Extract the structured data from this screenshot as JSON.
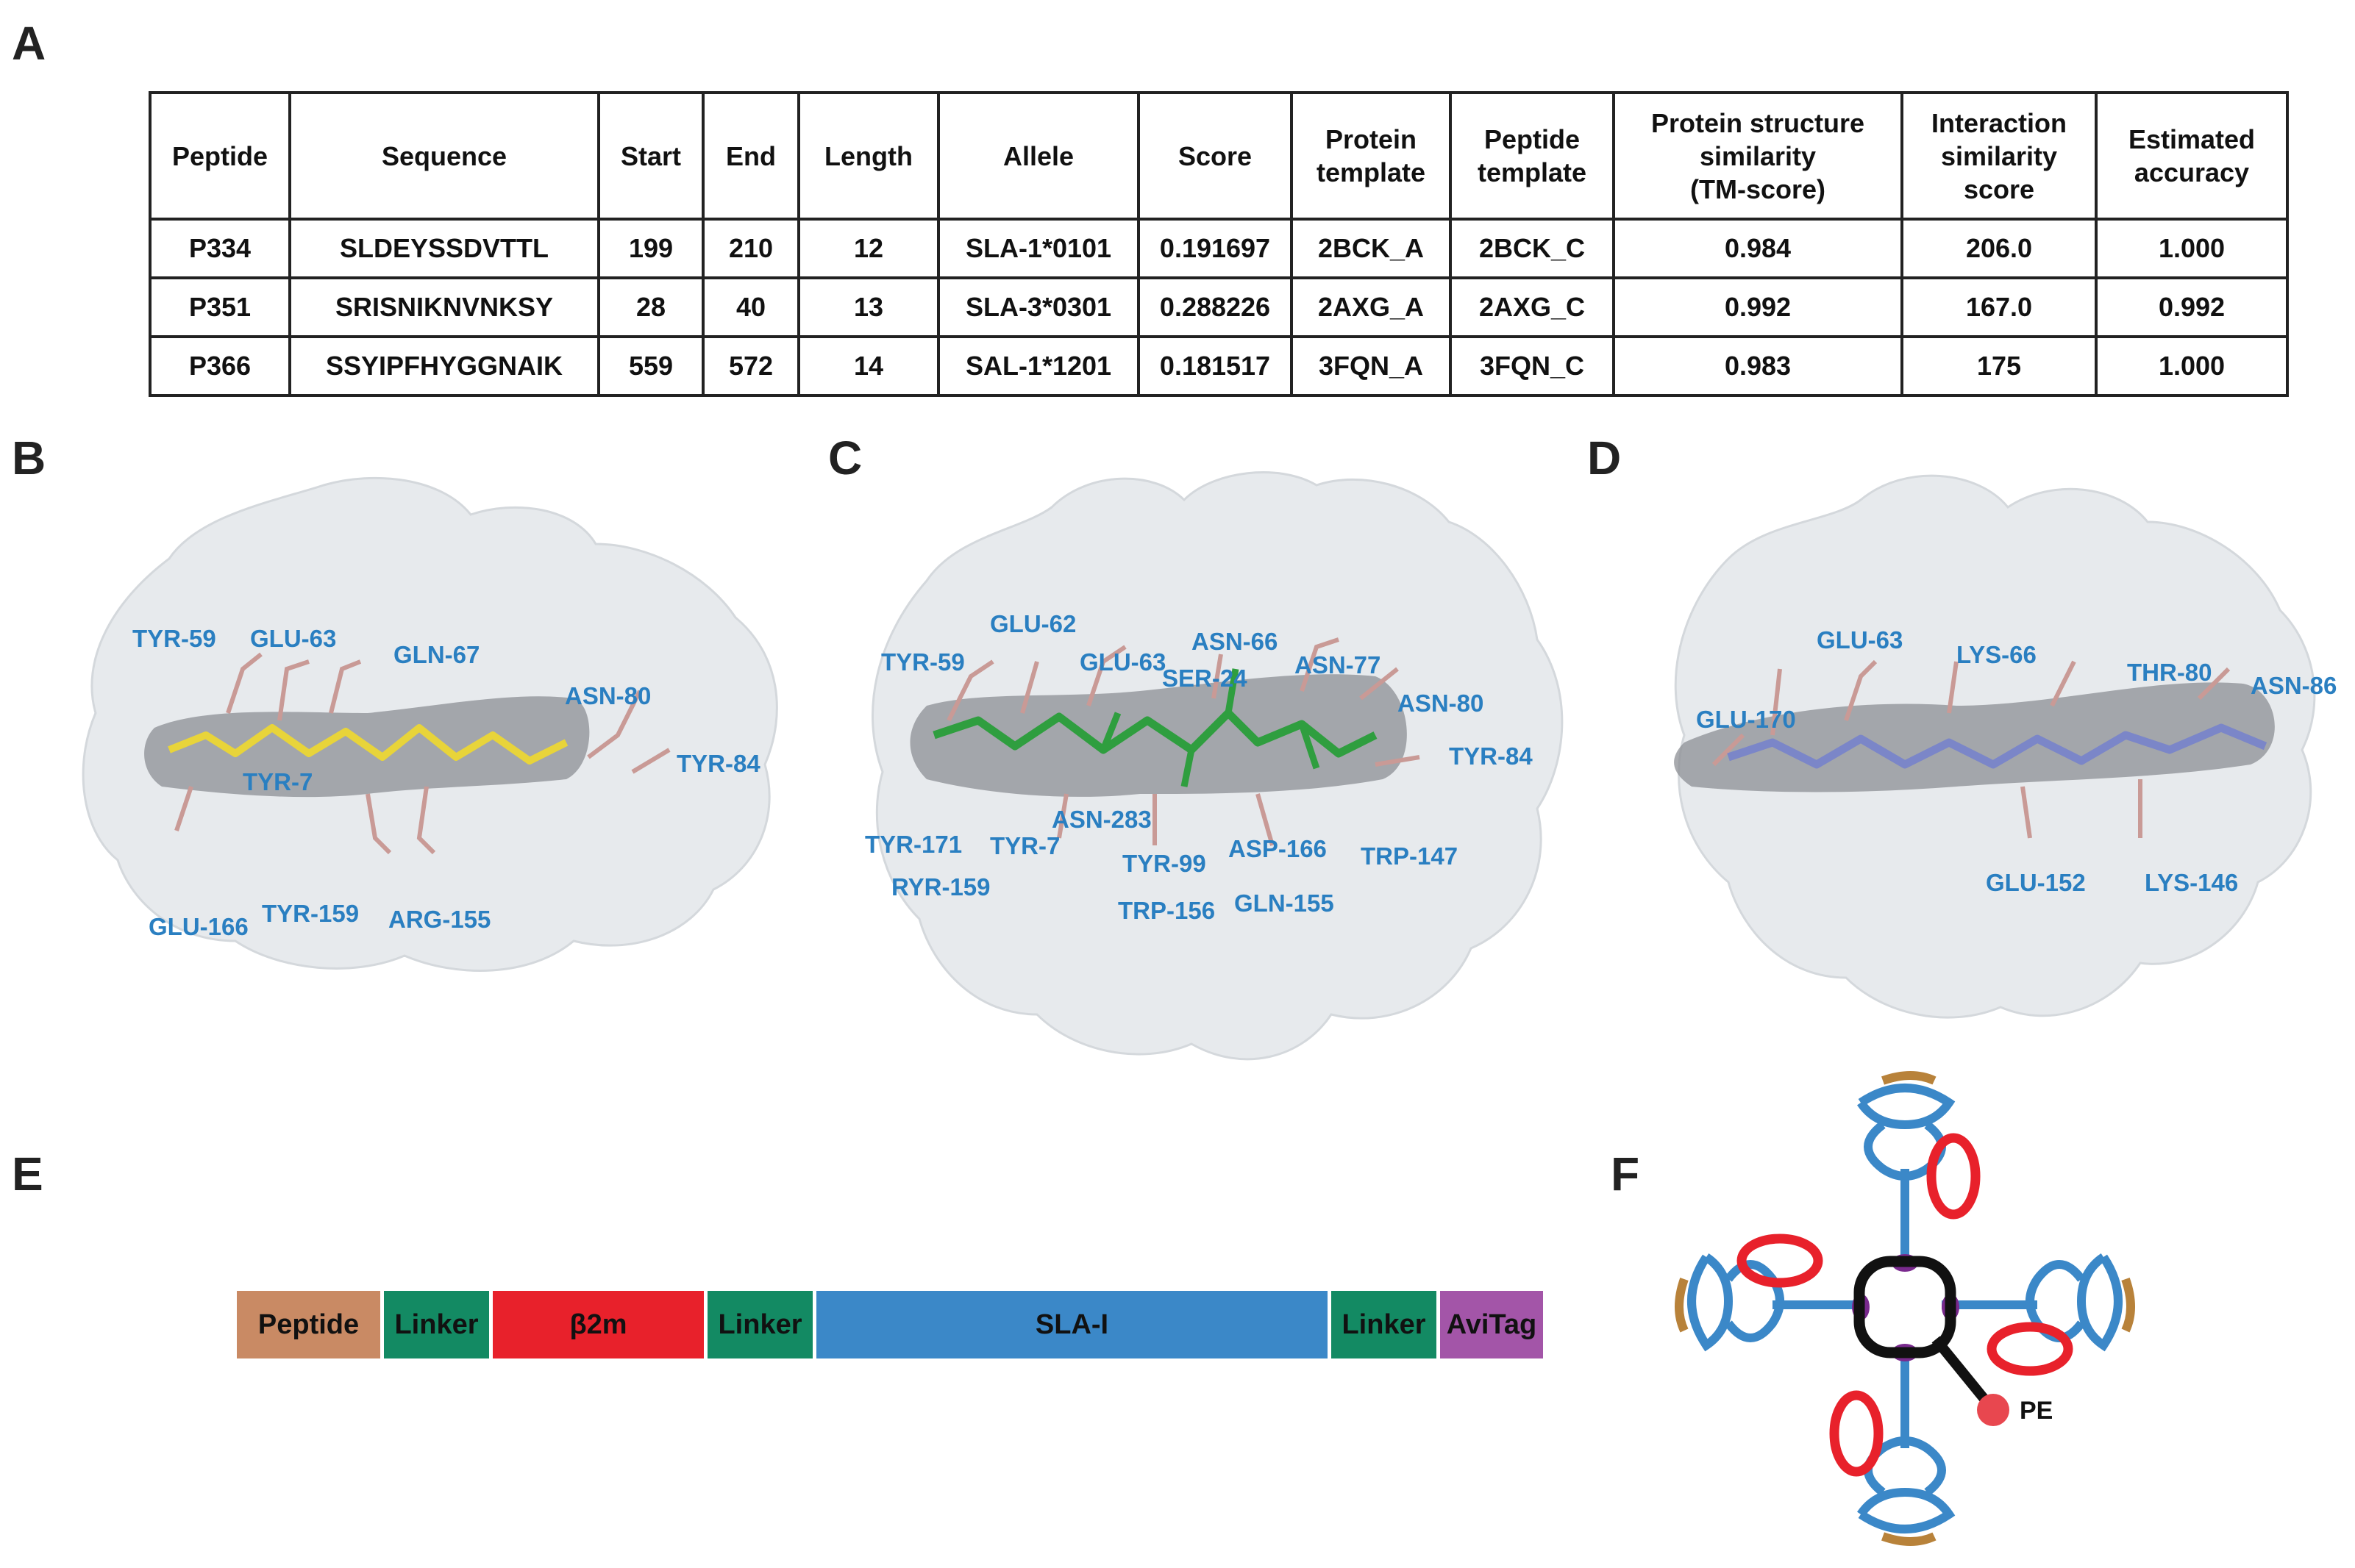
{
  "panels": {
    "a": "A",
    "b": "B",
    "c": "C",
    "d": "D",
    "e": "E",
    "f": "F"
  },
  "table": {
    "headers": [
      [
        "Peptide"
      ],
      [
        "Sequence"
      ],
      [
        "Start"
      ],
      [
        "End"
      ],
      [
        "Length"
      ],
      [
        "Allele"
      ],
      [
        "Score"
      ],
      [
        "Protein",
        "template"
      ],
      [
        "Peptide",
        "template"
      ],
      [
        "Protein structure",
        "similarity",
        "(TM-score)"
      ],
      [
        "Interaction",
        "similarity",
        "score"
      ],
      [
        "Estimated",
        "accuracy"
      ]
    ],
    "rows": [
      [
        "P334",
        "SLDEYSSDVTTL",
        "199",
        "210",
        "12",
        "SLA-1*0101",
        "0.191697",
        "2BCK_A",
        "2BCK_C",
        "0.984",
        "206.0",
        "1.000"
      ],
      [
        "P351",
        "SRISNIKNVNKSY",
        "28",
        "40",
        "13",
        "SLA-3*0301",
        "0.288226",
        "2AXG_A",
        "2AXG_C",
        "0.992",
        "167.0",
        "0.992"
      ],
      [
        "P366",
        "SSYIPFHYGGNAIK",
        "559",
        "572",
        "14",
        "SAL-1*1201",
        "0.181517",
        "3FQN_A",
        "3FQN_C",
        "0.983",
        "175",
        "1.000"
      ]
    ]
  },
  "structure_b": {
    "peptide_color": "#e8d43a",
    "labels": [
      "TYR-59",
      "GLU-63",
      "GLN-67",
      "ASN-80",
      "TYR-84",
      "TYR-7",
      "GLU-166",
      "TYR-159",
      "ARG-155"
    ]
  },
  "structure_c": {
    "peptide_color": "#2f9e3f",
    "labels": [
      "GLU-62",
      "TYR-59",
      "GLU-63",
      "ASN-66",
      "ASN-77",
      "SER-24",
      "ASN-80",
      "TYR-84",
      "TYR-171",
      "ASN-283",
      "TYR-7",
      "TYR-99",
      "ASP-166",
      "TRP-147",
      "RYR-159",
      "TRP-156",
      "GLN-155"
    ]
  },
  "structure_d": {
    "peptide_color": "#7b86c8",
    "labels": [
      "GLU-63",
      "LYS-66",
      "THR-80",
      "ASN-86",
      "GLU-170",
      "GLU-152",
      "LYS-146"
    ]
  },
  "construct": [
    {
      "label": "Peptide",
      "color": "#c98a64"
    },
    {
      "label": "Linker",
      "color": "#138a63"
    },
    {
      "label": "β2m",
      "color": "#e8212b"
    },
    {
      "label": "Linker",
      "color": "#138a63"
    },
    {
      "label": "SLA-I",
      "color": "#3b88c8"
    },
    {
      "label": "Linker",
      "color": "#138a63"
    },
    {
      "label": "AviTag",
      "color": "#a355a8"
    }
  ],
  "tetramer": {
    "pe_label": "PE",
    "pe_color": "#e8474f"
  }
}
